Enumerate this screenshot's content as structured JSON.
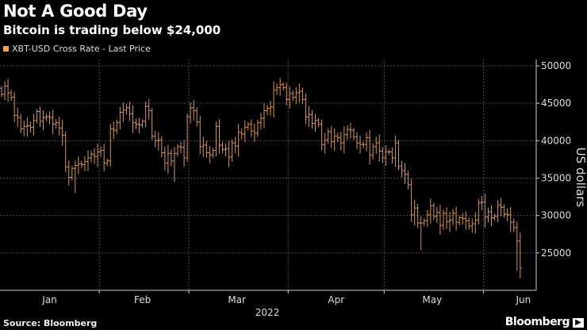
{
  "header": {
    "title": "Not A Good Day",
    "subtitle": "Bitcoin is trading below $24,000"
  },
  "footer": {
    "source": "Source: Bloomberg",
    "logo": "Bloomberg",
    "logo_mark": "▶"
  },
  "chart_data": {
    "type": "ohlc",
    "title": "Not A Good Day",
    "subtitle": "Bitcoin is trading below $24,000",
    "legend": [
      "XBT-USD Cross Rate - Last Price"
    ],
    "legend_placement": "top-left",
    "xlabel": "2022",
    "ylabel": "US dollars",
    "ylim": [
      20000,
      50850
    ],
    "yticks": [
      25000,
      30000,
      35000,
      40000,
      45000,
      50000
    ],
    "x_unit": "day index from Jan 1 2022",
    "xlim": [
      0,
      167.5
    ],
    "xticks": [
      {
        "label": "Jan",
        "day": 15.5
      },
      {
        "label": "Feb",
        "day": 44.5
      },
      {
        "label": "Mar",
        "day": 74
      },
      {
        "label": "Apr",
        "day": 105
      },
      {
        "label": "May",
        "day": 135
      },
      {
        "label": "Jun",
        "day": 163.5
      }
    ],
    "month_boundaries": [
      31,
      59,
      90,
      120,
      151
    ],
    "grid": true,
    "color": "#d9955a",
    "start_open": 47.0,
    "close_thousands": [
      46.2,
      47.3,
      46.4,
      45.8,
      43.4,
      43.1,
      41.6,
      41.9,
      42.0,
      41.8,
      42.7,
      43.9,
      42.6,
      43.1,
      43.2,
      43.1,
      42.2,
      42.4,
      41.7,
      40.7,
      36.5,
      35.1,
      36.3,
      36.7,
      36.9,
      36.8,
      37.2,
      37.7,
      38.2,
      37.9,
      38.5,
      38.7,
      37.0,
      37.3,
      41.6,
      41.4,
      42.4,
      43.8,
      44.1,
      44.4,
      43.6,
      42.4,
      42.2,
      42.1,
      42.6,
      44.6,
      44.0,
      40.6,
      40.0,
      40.1,
      38.4,
      37.0,
      38.3,
      37.3,
      38.3,
      39.2,
      39.1,
      37.7,
      43.2,
      44.4,
      44.0,
      42.5,
      39.2,
      39.4,
      38.4,
      38.1,
      38.7,
      41.9,
      39.4,
      38.8,
      38.9,
      37.8,
      39.7,
      39.3,
      41.1,
      40.9,
      41.8,
      42.2,
      41.3,
      41.0,
      42.4,
      43.0,
      44.0,
      44.3,
      44.5,
      46.8,
      47.1,
      47.5,
      47.1,
      45.5,
      46.3,
      45.8,
      46.4,
      46.6,
      45.5,
      43.2,
      43.5,
      42.3,
      42.7,
      42.2,
      39.5,
      40.1,
      41.2,
      39.9,
      40.6,
      40.4,
      39.7,
      40.8,
      41.5,
      41.4,
      40.5,
      39.7,
      39.5,
      39.5,
      40.4,
      38.1,
      39.2,
      39.7,
      38.6,
      37.7,
      38.5,
      38.5,
      37.7,
      39.7,
      36.6,
      36.0,
      35.5,
      34.1,
      30.1,
      31.0,
      29.0,
      29.0,
      29.3,
      30.1,
      31.3,
      29.9,
      30.4,
      28.7,
      30.3,
      29.2,
      29.4,
      30.3,
      29.1,
      29.7,
      29.6,
      29.3,
      28.6,
      28.9,
      29.4,
      31.7,
      31.8,
      29.8,
      30.5,
      29.7,
      29.9,
      31.4,
      31.1,
      30.2,
      30.1,
      29.1,
      28.4,
      26.6,
      23.0
    ],
    "notable_lows_thousands": {
      "23": 33.0,
      "54": 34.5,
      "131": 25.4,
      "161": 22.6
    }
  }
}
